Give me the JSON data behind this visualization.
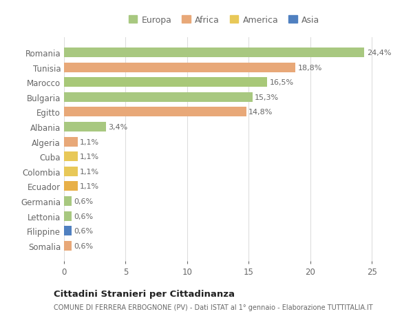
{
  "categories": [
    "Romania",
    "Tunisia",
    "Marocco",
    "Bulgaria",
    "Egitto",
    "Albania",
    "Algeria",
    "Cuba",
    "Colombia",
    "Ecuador",
    "Germania",
    "Lettonia",
    "Filippine",
    "Somalia"
  ],
  "values": [
    24.4,
    18.8,
    16.5,
    15.3,
    14.8,
    3.4,
    1.1,
    1.1,
    1.1,
    1.1,
    0.6,
    0.6,
    0.6,
    0.6
  ],
  "labels": [
    "24,4%",
    "18,8%",
    "16,5%",
    "15,3%",
    "14,8%",
    "3,4%",
    "1,1%",
    "1,1%",
    "1,1%",
    "1,1%",
    "0,6%",
    "0,6%",
    "0,6%",
    "0,6%"
  ],
  "colors": [
    "#a8c880",
    "#e8a878",
    "#a8c878",
    "#a8c880",
    "#e8a878",
    "#a8c880",
    "#e8a878",
    "#e8c858",
    "#e8c858",
    "#e8b048",
    "#a8c880",
    "#a8c880",
    "#5080c0",
    "#e8a878"
  ],
  "legend_labels": [
    "Europa",
    "Africa",
    "America",
    "Asia"
  ],
  "legend_colors": [
    "#a8c880",
    "#e8a878",
    "#e8c858",
    "#5080c0"
  ],
  "title": "Cittadini Stranieri per Cittadinanza",
  "subtitle": "COMUNE DI FERRERA ERBOGNONE (PV) - Dati ISTAT al 1° gennaio - Elaborazione TUTTITALIA.IT",
  "xlim": [
    0,
    26
  ],
  "xticks": [
    0,
    5,
    10,
    15,
    20,
    25
  ],
  "background_color": "#ffffff",
  "plot_bg_color": "#ffffff",
  "bar_height": 0.65,
  "grid_color": "#dddddd",
  "text_color": "#666666",
  "label_fontsize": 8.0,
  "ytick_fontsize": 8.5,
  "xtick_fontsize": 8.5
}
